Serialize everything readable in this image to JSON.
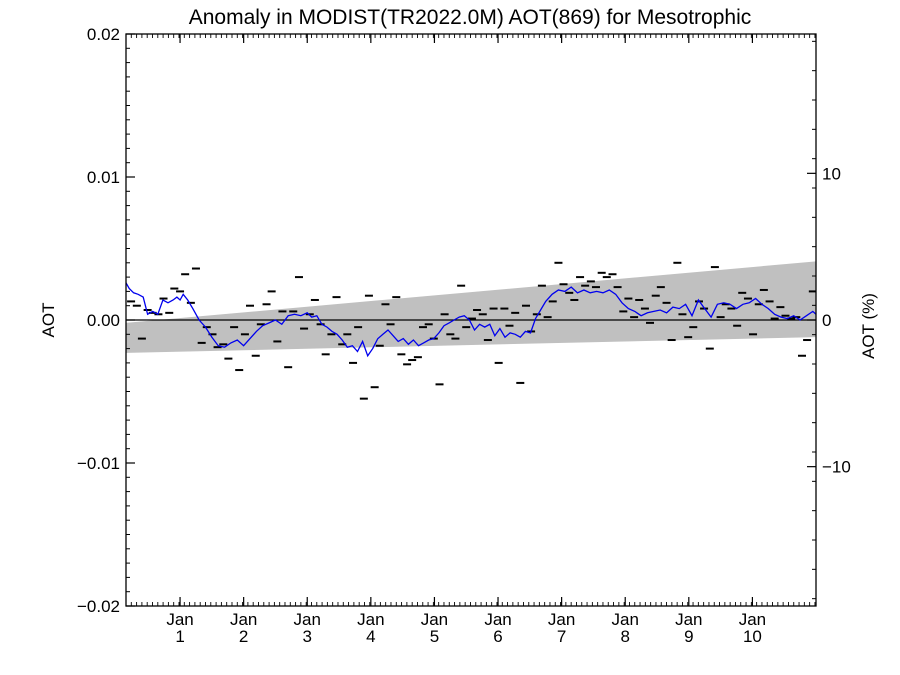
{
  "chart_data": {
    "type": "line",
    "title": "Anomaly in MODIST(TR2022.0M) AOT(869) for Mesotrophic",
    "ylabel": "AOT",
    "y2label": "AOT (%)",
    "ylim": [
      -0.02,
      0.02
    ],
    "y2lim": [
      -19.5,
      19.5
    ],
    "xlim": [
      0,
      10.85
    ],
    "yticks": [
      {
        "value": 0.02,
        "label": "0.02"
      },
      {
        "value": 0.01,
        "label": "0.01"
      },
      {
        "value": 0.0,
        "label": "0.00"
      },
      {
        "value": -0.01,
        "label": "−0.01"
      },
      {
        "value": -0.02,
        "label": "−0.02"
      }
    ],
    "y2ticks": [
      {
        "value": 10,
        "label": "10"
      },
      {
        "value": 0,
        "label": "0"
      },
      {
        "value": -10,
        "label": "−10"
      }
    ],
    "xticks": [
      {
        "value": 0.85,
        "line1": "Jan",
        "line2": "1"
      },
      {
        "value": 1.85,
        "line1": "Jan",
        "line2": "2"
      },
      {
        "value": 2.85,
        "line1": "Jan",
        "line2": "3"
      },
      {
        "value": 3.85,
        "line1": "Jan",
        "line2": "4"
      },
      {
        "value": 4.85,
        "line1": "Jan",
        "line2": "5"
      },
      {
        "value": 5.85,
        "line1": "Jan",
        "line2": "6"
      },
      {
        "value": 6.85,
        "line1": "Jan",
        "line2": "7"
      },
      {
        "value": 7.85,
        "line1": "Jan",
        "line2": "8"
      },
      {
        "value": 8.85,
        "line1": "Jan",
        "line2": "9"
      },
      {
        "value": 9.85,
        "line1": "Jan",
        "line2": "10"
      }
    ],
    "band": {
      "color": "#c0c0c0",
      "lower": [
        [
          0,
          -0.0023
        ],
        [
          10.85,
          -0.0012
        ]
      ],
      "upper": [
        [
          0,
          -0.0002
        ],
        [
          10.85,
          0.0041
        ]
      ]
    },
    "zero_line": {
      "color": "#000000",
      "value": 0.0
    },
    "series": [
      {
        "type": "scatter",
        "marker": "dash",
        "color": "#000000",
        "points": [
          [
            0.08,
            0.0013
          ],
          [
            0.17,
            0.001
          ],
          [
            0.25,
            -0.0013
          ],
          [
            0.34,
            0.0007
          ],
          [
            0.42,
            0.0005
          ],
          [
            0.51,
            0.0004
          ],
          [
            0.59,
            0.0015
          ],
          [
            0.68,
            0.0005
          ],
          [
            0.76,
            0.0022
          ],
          [
            0.85,
            0.002
          ],
          [
            0.93,
            0.0032
          ],
          [
            1.02,
            0.0012
          ],
          [
            1.1,
            0.0036
          ],
          [
            1.19,
            -0.0016
          ],
          [
            1.27,
            -0.0005
          ],
          [
            1.36,
            -0.001
          ],
          [
            1.44,
            -0.0019
          ],
          [
            1.53,
            -0.0017
          ],
          [
            1.61,
            -0.0027
          ],
          [
            1.7,
            -0.0005
          ],
          [
            1.78,
            -0.0035
          ],
          [
            1.87,
            -0.001
          ],
          [
            1.95,
            0.001
          ],
          [
            2.04,
            -0.0025
          ],
          [
            2.12,
            -0.0003
          ],
          [
            2.21,
            0.0011
          ],
          [
            2.29,
            0.002
          ],
          [
            2.38,
            -0.0015
          ],
          [
            2.46,
            0.0006
          ],
          [
            2.55,
            -0.0033
          ],
          [
            2.63,
            0.0006
          ],
          [
            2.72,
            0.003
          ],
          [
            2.8,
            -0.0006
          ],
          [
            2.89,
            0.0004
          ],
          [
            2.97,
            0.0014
          ],
          [
            3.06,
            -0.0003
          ],
          [
            3.14,
            -0.0024
          ],
          [
            3.23,
            -0.001
          ],
          [
            3.31,
            0.0016
          ],
          [
            3.4,
            -0.0017
          ],
          [
            3.48,
            -0.001
          ],
          [
            3.57,
            -0.003
          ],
          [
            3.65,
            -0.0005
          ],
          [
            3.74,
            -0.0055
          ],
          [
            3.82,
            0.0017
          ],
          [
            3.91,
            -0.0047
          ],
          [
            3.99,
            -0.0018
          ],
          [
            4.08,
            0.0011
          ],
          [
            4.16,
            -0.0003
          ],
          [
            4.25,
            0.0016
          ],
          [
            4.33,
            -0.0024
          ],
          [
            4.42,
            -0.0031
          ],
          [
            4.5,
            -0.0028
          ],
          [
            4.59,
            -0.0026
          ],
          [
            4.67,
            -0.0005
          ],
          [
            4.76,
            -0.0003
          ],
          [
            4.84,
            -0.0013
          ],
          [
            4.93,
            -0.0045
          ],
          [
            5.01,
            0.0004
          ],
          [
            5.1,
            -0.001
          ],
          [
            5.18,
            -0.0013
          ],
          [
            5.27,
            0.0024
          ],
          [
            5.35,
            -0.0005
          ],
          [
            5.44,
            0.0001
          ],
          [
            5.52,
            0.0007
          ],
          [
            5.61,
            0.0004
          ],
          [
            5.69,
            -0.0014
          ],
          [
            5.78,
            0.0008
          ],
          [
            5.86,
            -0.003
          ],
          [
            5.95,
            0.0008
          ],
          [
            6.03,
            -0.0004
          ],
          [
            6.12,
            0.0005
          ],
          [
            6.2,
            -0.0044
          ],
          [
            6.29,
            0.001
          ],
          [
            6.37,
            -0.0008
          ],
          [
            6.46,
            0.0004
          ],
          [
            6.54,
            0.0024
          ],
          [
            6.63,
            0.0002
          ],
          [
            6.71,
            0.0013
          ],
          [
            6.8,
            0.004
          ],
          [
            6.88,
            0.0025
          ],
          [
            6.97,
            0.0019
          ],
          [
            7.05,
            0.0014
          ],
          [
            7.14,
            0.003
          ],
          [
            7.22,
            0.0024
          ],
          [
            7.31,
            0.0027
          ],
          [
            7.39,
            0.0023
          ],
          [
            7.48,
            0.0033
          ],
          [
            7.56,
            0.003
          ],
          [
            7.65,
            0.0032
          ],
          [
            7.73,
            0.0023
          ],
          [
            7.82,
            0.0006
          ],
          [
            7.9,
            0.0015
          ],
          [
            7.99,
            0.0002
          ],
          [
            8.07,
            0.0014
          ],
          [
            8.16,
            0.0008
          ],
          [
            8.24,
            -0.0002
          ],
          [
            8.33,
            0.0017
          ],
          [
            8.41,
            0.0023
          ],
          [
            8.5,
            0.0012
          ],
          [
            8.58,
            -0.0014
          ],
          [
            8.67,
            0.004
          ],
          [
            8.75,
            0.0004
          ],
          [
            8.84,
            -0.0012
          ],
          [
            8.92,
            -0.0005
          ],
          [
            9.01,
            0.0013
          ],
          [
            9.09,
            0.0008
          ],
          [
            9.18,
            -0.002
          ],
          [
            9.26,
            0.0037
          ],
          [
            9.35,
            0.0002
          ],
          [
            9.43,
            0.0011
          ],
          [
            9.52,
            0.0008
          ],
          [
            9.61,
            -0.0004
          ],
          [
            9.69,
            0.0019
          ],
          [
            9.78,
            0.0015
          ],
          [
            9.86,
            -0.001
          ],
          [
            9.95,
            0.0011
          ],
          [
            10.03,
            0.0021
          ],
          [
            10.12,
            0.0013
          ],
          [
            10.2,
            0.0001
          ],
          [
            10.29,
            0.0009
          ],
          [
            10.37,
            0.0003
          ],
          [
            10.46,
            0.0001
          ],
          [
            10.54,
            0.0002
          ],
          [
            10.63,
            -0.0025
          ],
          [
            10.71,
            -0.0014
          ],
          [
            10.8,
            0.002
          ]
        ]
      },
      {
        "type": "line",
        "color": "#0000ee",
        "points": [
          [
            0.0,
            0.0026
          ],
          [
            0.05,
            0.0022
          ],
          [
            0.12,
            0.0019
          ],
          [
            0.19,
            0.0018
          ],
          [
            0.27,
            0.0016
          ],
          [
            0.34,
            0.0004
          ],
          [
            0.42,
            0.0006
          ],
          [
            0.5,
            0.0004
          ],
          [
            0.58,
            0.0014
          ],
          [
            0.66,
            0.0012
          ],
          [
            0.74,
            0.0014
          ],
          [
            0.8,
            0.0016
          ],
          [
            0.85,
            0.0014
          ],
          [
            0.9,
            0.0018
          ],
          [
            0.97,
            0.0014
          ],
          [
            1.05,
            0.0008
          ],
          [
            1.15,
            0.0
          ],
          [
            1.25,
            -0.0005
          ],
          [
            1.35,
            -0.0012
          ],
          [
            1.45,
            -0.0018
          ],
          [
            1.55,
            -0.0019
          ],
          [
            1.65,
            -0.0016
          ],
          [
            1.75,
            -0.0014
          ],
          [
            1.85,
            -0.0018
          ],
          [
            1.95,
            -0.0013
          ],
          [
            2.05,
            -0.0008
          ],
          [
            2.15,
            -0.0004
          ],
          [
            2.25,
            -0.0002
          ],
          [
            2.35,
            0.0
          ],
          [
            2.45,
            -0.0003
          ],
          [
            2.55,
            0.0003
          ],
          [
            2.65,
            0.0004
          ],
          [
            2.75,
            0.0003
          ],
          [
            2.85,
            0.0005
          ],
          [
            2.92,
            0.0002
          ],
          [
            3.0,
            0.0003
          ],
          [
            3.08,
            -0.0003
          ],
          [
            3.16,
            -0.0005
          ],
          [
            3.24,
            -0.0008
          ],
          [
            3.32,
            -0.001
          ],
          [
            3.4,
            -0.0014
          ],
          [
            3.48,
            -0.0019
          ],
          [
            3.56,
            -0.0018
          ],
          [
            3.64,
            -0.0022
          ],
          [
            3.72,
            -0.0015
          ],
          [
            3.8,
            -0.0025
          ],
          [
            3.88,
            -0.002
          ],
          [
            3.96,
            -0.0013
          ],
          [
            4.04,
            -0.001
          ],
          [
            4.12,
            -0.0007
          ],
          [
            4.2,
            -0.0011
          ],
          [
            4.28,
            -0.0015
          ],
          [
            4.36,
            -0.0013
          ],
          [
            4.44,
            -0.0017
          ],
          [
            4.52,
            -0.0014
          ],
          [
            4.6,
            -0.0018
          ],
          [
            4.68,
            -0.0016
          ],
          [
            4.76,
            -0.0014
          ],
          [
            4.84,
            -0.0013
          ],
          [
            4.92,
            -0.0009
          ],
          [
            5.0,
            -0.0004
          ],
          [
            5.08,
            -0.0002
          ],
          [
            5.16,
            0.0
          ],
          [
            5.24,
            0.0002
          ],
          [
            5.32,
            0.0003
          ],
          [
            5.4,
            0.0
          ],
          [
            5.48,
            -0.0007
          ],
          [
            5.56,
            -0.0003
          ],
          [
            5.64,
            -0.0005
          ],
          [
            5.72,
            -0.0003
          ],
          [
            5.8,
            -0.0011
          ],
          [
            5.88,
            -0.0006
          ],
          [
            5.96,
            -0.0012
          ],
          [
            6.04,
            -0.0009
          ],
          [
            6.12,
            -0.001
          ],
          [
            6.2,
            -0.0012
          ],
          [
            6.28,
            -0.0008
          ],
          [
            6.36,
            -0.0009
          ],
          [
            6.44,
            0.0001
          ],
          [
            6.52,
            0.0007
          ],
          [
            6.6,
            0.0013
          ],
          [
            6.7,
            0.0018
          ],
          [
            6.8,
            0.0021
          ],
          [
            6.9,
            0.002
          ],
          [
            7.0,
            0.0023
          ],
          [
            7.1,
            0.0019
          ],
          [
            7.2,
            0.0021
          ],
          [
            7.3,
            0.0019
          ],
          [
            7.4,
            0.002
          ],
          [
            7.5,
            0.0019
          ],
          [
            7.6,
            0.0021
          ],
          [
            7.7,
            0.0018
          ],
          [
            7.8,
            0.0012
          ],
          [
            7.9,
            0.0008
          ],
          [
            8.0,
            0.0006
          ],
          [
            8.1,
            0.0003
          ],
          [
            8.2,
            0.0005
          ],
          [
            8.3,
            0.0006
          ],
          [
            8.4,
            0.0007
          ],
          [
            8.5,
            0.0005
          ],
          [
            8.6,
            0.0009
          ],
          [
            8.7,
            0.0008
          ],
          [
            8.8,
            0.0011
          ],
          [
            8.9,
            0.0003
          ],
          [
            9.0,
            0.0014
          ],
          [
            9.1,
            0.0008
          ],
          [
            9.2,
            0.0002
          ],
          [
            9.3,
            0.0011
          ],
          [
            9.4,
            0.0012
          ],
          [
            9.5,
            0.0011
          ],
          [
            9.6,
            0.0008
          ],
          [
            9.7,
            0.0011
          ],
          [
            9.8,
            0.0012
          ],
          [
            9.9,
            0.0015
          ],
          [
            10.0,
            0.0011
          ],
          [
            10.1,
            0.0008
          ],
          [
            10.2,
            0.0004
          ],
          [
            10.3,
            0.0002
          ],
          [
            10.4,
            0.0001
          ],
          [
            10.5,
            0.0003
          ],
          [
            10.6,
            0.0
          ],
          [
            10.7,
            0.0003
          ],
          [
            10.8,
            0.0006
          ],
          [
            10.85,
            0.0004
          ]
        ]
      }
    ],
    "grid": false
  }
}
